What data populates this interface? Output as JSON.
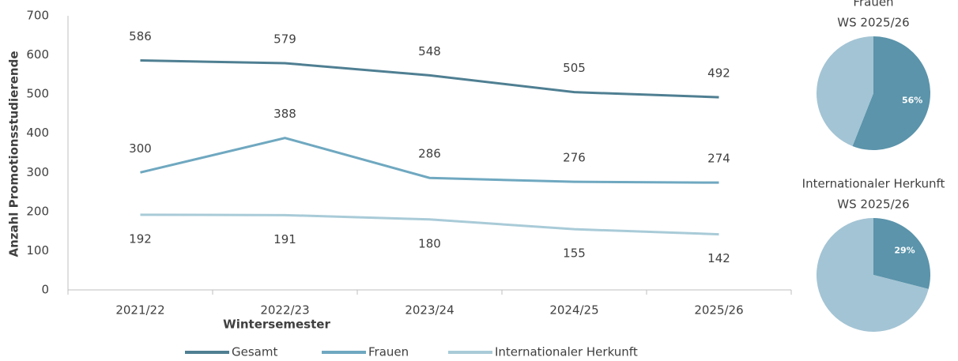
{
  "chart_data": [
    {
      "type": "line",
      "xlabel": "Wintersemester",
      "ylabel": "Anzahl Promotionsstudierende",
      "categories": [
        "2021/22",
        "2022/23",
        "2023/24",
        "2024/25",
        "2025/26"
      ],
      "series": [
        {
          "name": "Gesamt",
          "color": "#4f7f92",
          "values": [
            586,
            579,
            548,
            505,
            492
          ]
        },
        {
          "name": "Frauen",
          "color": "#6fa8c0",
          "values": [
            300,
            388,
            286,
            276,
            274
          ]
        },
        {
          "name": "Internationaler Herkunft",
          "color": "#a9cbd8",
          "values": [
            192,
            191,
            180,
            155,
            142
          ]
        }
      ],
      "ylim": [
        0,
        700
      ],
      "yticks": [
        0,
        100,
        200,
        300,
        400,
        500,
        600,
        700
      ],
      "grid": false,
      "legend": "bottom"
    },
    {
      "type": "pie",
      "title": "Frauen",
      "subtitle": "WS 2025/26",
      "values": [
        56,
        44
      ],
      "value_labels": [
        "56%",
        null
      ],
      "colors": [
        "#5b94ab",
        "#a3c4d4"
      ]
    },
    {
      "type": "pie",
      "title": "Internationaler Herkunft",
      "subtitle": "WS 2025/26",
      "values": [
        29,
        71
      ],
      "value_labels": [
        "29%",
        null
      ],
      "colors": [
        "#5b94ab",
        "#a3c4d4"
      ]
    }
  ]
}
